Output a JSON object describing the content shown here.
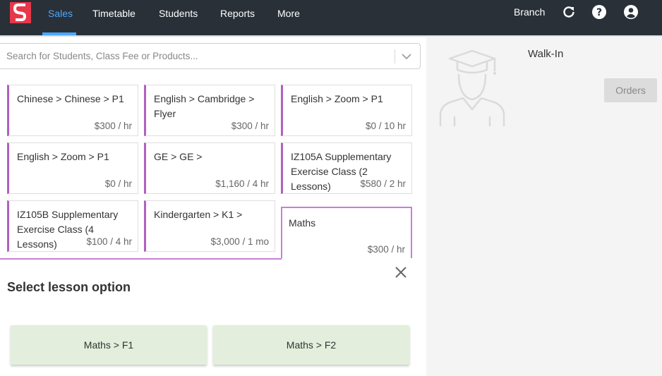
{
  "nav": {
    "items": [
      "Sales",
      "Timetable",
      "Students",
      "Reports",
      "More"
    ],
    "branch_label": "Branch",
    "icons": [
      "refresh-icon",
      "help-icon",
      "account-icon"
    ],
    "accent": "#4aa8ff",
    "background": "#293038"
  },
  "search": {
    "placeholder": "Search for Students, Class Fee or Products..."
  },
  "products": [
    {
      "title": "Chinese > Chinese > P1",
      "price": "$300 / hr"
    },
    {
      "title": "English > Cambridge > Flyer",
      "price": "$300 / hr"
    },
    {
      "title": "English > Zoom > P1",
      "price": "$0 / 10 hr"
    },
    {
      "title": "English > Zoom > P1",
      "price": "$0 / hr"
    },
    {
      "title": "GE > GE >",
      "price": "$1,160 / 4 hr"
    },
    {
      "title": "IZ105A Supplementary Exercise Class (2 Lessons)",
      "price": "$580 / 2 hr"
    },
    {
      "title": "IZ105B Supplementary Exercise Class (4 Lessons)",
      "price": "$100 / 4 hr"
    },
    {
      "title": "Kindergarten > K1 >",
      "price": "$3,000 / 1 mo"
    },
    {
      "title": "Maths",
      "price": "$300 / hr"
    }
  ],
  "lesson_panel": {
    "title": "Select lesson option",
    "options": [
      "Maths > F1",
      "Maths > F2"
    ]
  },
  "customer": {
    "name": "Walk-In",
    "orders_label": "Orders"
  },
  "colors": {
    "card_accent": "#b060c0",
    "option_bg": "#e3efdc"
  }
}
